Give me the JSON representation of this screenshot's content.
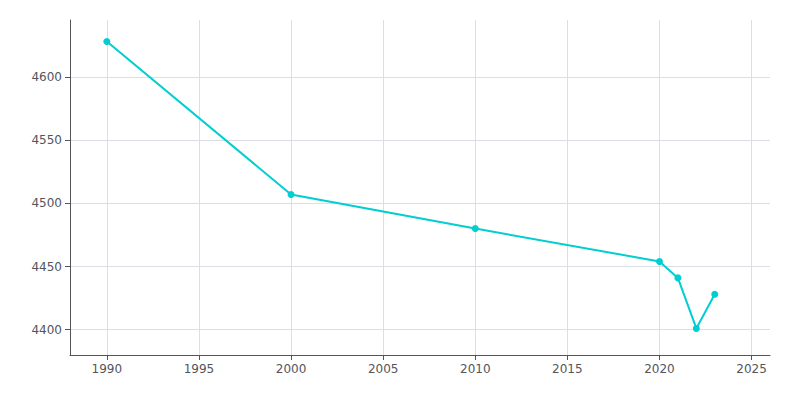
{
  "chart_data": {
    "type": "line",
    "x": [
      1990,
      2000,
      2010,
      2020,
      2021,
      2022,
      2023
    ],
    "values": [
      4628,
      4507,
      4480,
      4454,
      4441,
      4401,
      4428
    ],
    "color": "#00CED1",
    "marker": "circle",
    "xlim": [
      1988,
      2026
    ],
    "ylim": [
      4380,
      4645
    ],
    "xticks": [
      1990,
      1995,
      2000,
      2005,
      2010,
      2015,
      2020,
      2025
    ],
    "yticks": [
      4400,
      4450,
      4500,
      4550,
      4600
    ],
    "grid": true
  }
}
